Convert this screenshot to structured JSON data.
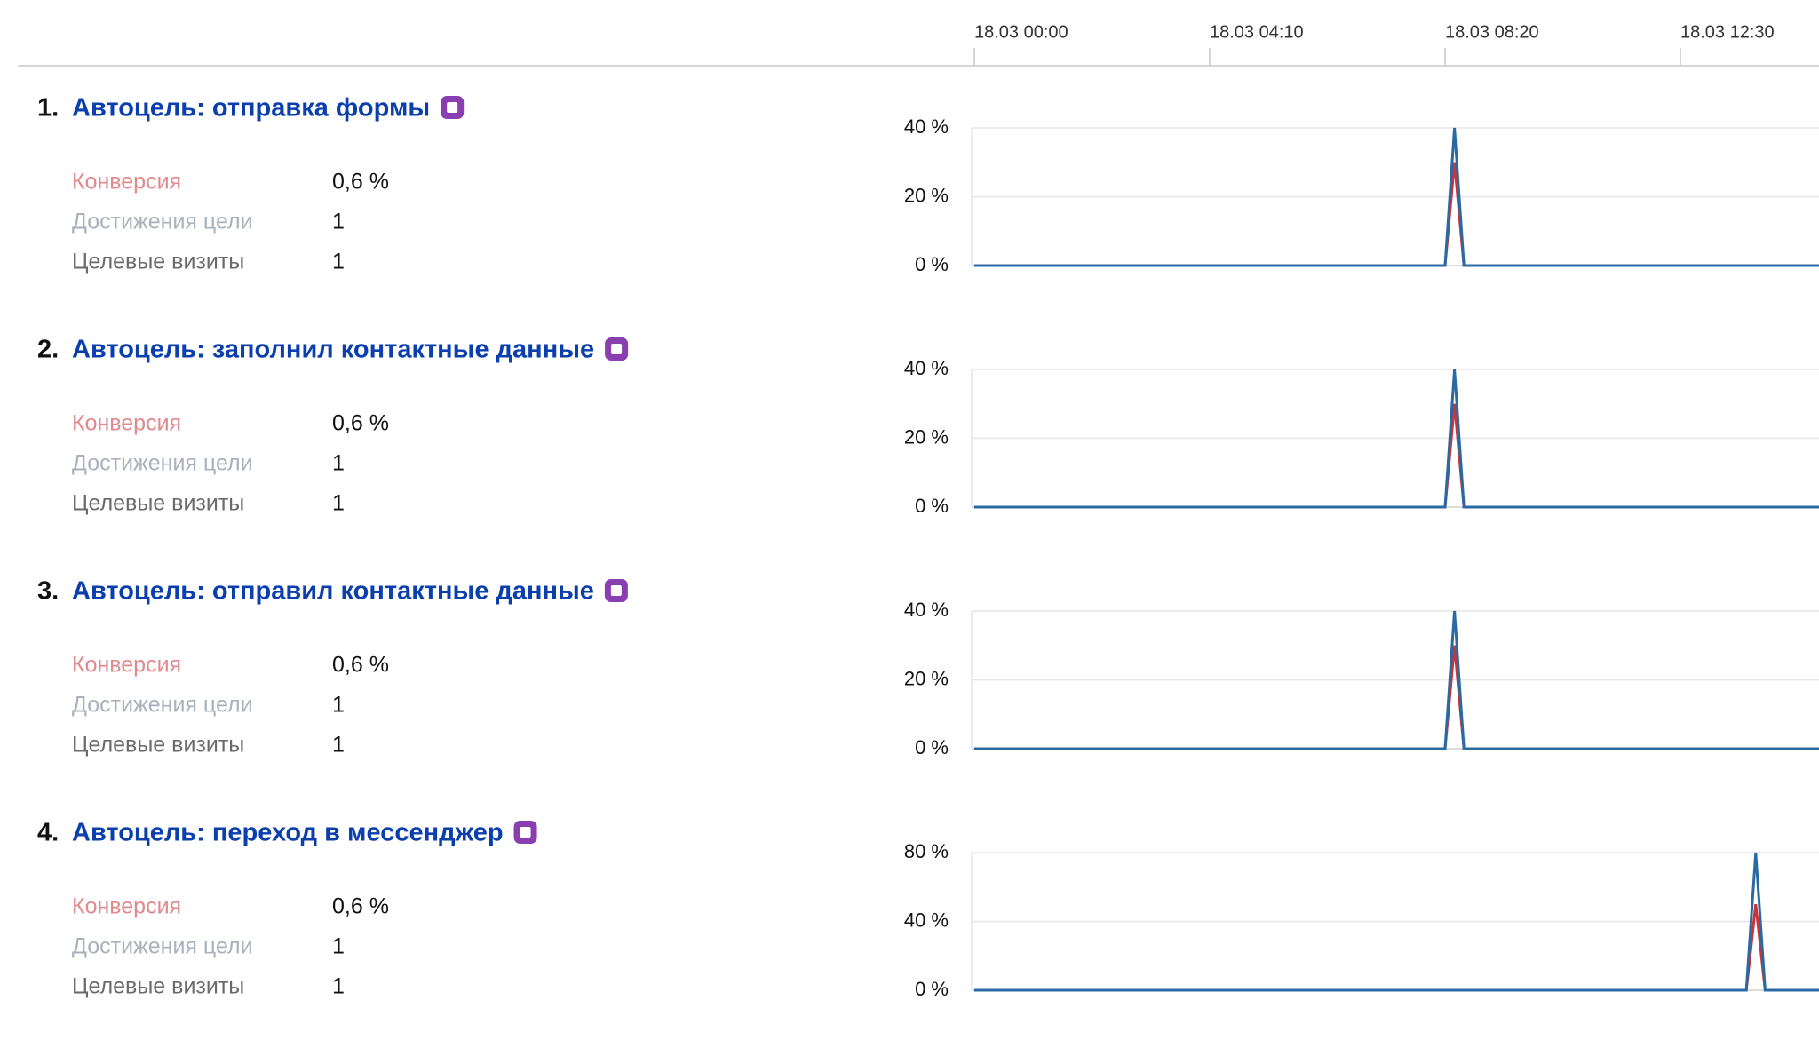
{
  "timeline": {
    "xlim": [
      0,
      900
    ],
    "xticks": [
      {
        "value": 0,
        "label": "18.03 00:00"
      },
      {
        "value": 250,
        "label": "18.03 04:10"
      },
      {
        "value": 500,
        "label": "18.03 08:20"
      },
      {
        "value": 750,
        "label": "18.03 12:30"
      }
    ]
  },
  "goals": [
    {
      "number": "1.",
      "title": "Автоцель: отправка формы",
      "metrics": [
        {
          "label": "Конверсия",
          "value": "0,6 %"
        },
        {
          "label": "Достижения цели",
          "value": 1
        },
        {
          "label": "Целевые визиты",
          "value": 1
        }
      ]
    },
    {
      "number": "2.",
      "title": "Автоцель: заполнил контактные данные",
      "metrics": [
        {
          "label": "Конверсия",
          "value": "0,6 %"
        },
        {
          "label": "Достижения цели",
          "value": 1
        },
        {
          "label": "Целевые визиты",
          "value": 1
        }
      ]
    },
    {
      "number": "3.",
      "title": "Автоцель: отправил контактные данные",
      "metrics": [
        {
          "label": "Конверсия",
          "value": "0,6 %"
        },
        {
          "label": "Достижения цели",
          "value": 1
        },
        {
          "label": "Целевые визиты",
          "value": 1
        }
      ]
    },
    {
      "number": "4.",
      "title": "Автоцель: переход в мессенджер",
      "metrics": [
        {
          "label": "Конверсия",
          "value": "0,6 %"
        },
        {
          "label": "Достижения цели",
          "value": 1
        },
        {
          "label": "Целевые визиты",
          "value": 1
        }
      ]
    }
  ],
  "chart_data": [
    {
      "type": "line",
      "grid": true,
      "x": [
        0,
        500,
        510,
        520,
        900
      ],
      "ylim": [
        0,
        40
      ],
      "yticks": [
        {
          "value": 0,
          "label": "0 %"
        },
        {
          "value": 20,
          "label": "20 %"
        },
        {
          "value": 40,
          "label": "40 %"
        }
      ],
      "series": [
        {
          "color": "#c8353a",
          "values": [
            0,
            0,
            30,
            0,
            0
          ]
        },
        {
          "color": "#2a6aa3",
          "values": [
            0,
            0,
            40,
            0,
            0
          ]
        }
      ]
    },
    {
      "type": "line",
      "grid": true,
      "x": [
        0,
        500,
        510,
        520,
        900
      ],
      "ylim": [
        0,
        40
      ],
      "yticks": [
        {
          "value": 0,
          "label": "0 %"
        },
        {
          "value": 20,
          "label": "20 %"
        },
        {
          "value": 40,
          "label": "40 %"
        }
      ],
      "series": [
        {
          "color": "#c8353a",
          "values": [
            0,
            0,
            30,
            0,
            0
          ]
        },
        {
          "color": "#2a6aa3",
          "values": [
            0,
            0,
            40,
            0,
            0
          ]
        }
      ]
    },
    {
      "type": "line",
      "grid": true,
      "x": [
        0,
        500,
        510,
        520,
        900
      ],
      "ylim": [
        0,
        40
      ],
      "yticks": [
        {
          "value": 0,
          "label": "0 %"
        },
        {
          "value": 20,
          "label": "20 %"
        },
        {
          "value": 40,
          "label": "40 %"
        }
      ],
      "series": [
        {
          "color": "#c8353a",
          "values": [
            0,
            0,
            30,
            0,
            0
          ]
        },
        {
          "color": "#2a6aa3",
          "values": [
            0,
            0,
            40,
            0,
            0
          ]
        }
      ]
    },
    {
      "type": "line",
      "grid": true,
      "x": [
        0,
        820,
        830,
        840,
        900
      ],
      "ylim": [
        0,
        80
      ],
      "yticks": [
        {
          "value": 0,
          "label": "0 %"
        },
        {
          "value": 40,
          "label": "40 %"
        },
        {
          "value": 80,
          "label": "80 %"
        }
      ],
      "series": [
        {
          "color": "#c8353a",
          "values": [
            0,
            0,
            50,
            0,
            0
          ]
        },
        {
          "color": "#2a6aa3",
          "values": [
            0,
            0,
            80,
            0,
            0
          ]
        }
      ]
    }
  ]
}
